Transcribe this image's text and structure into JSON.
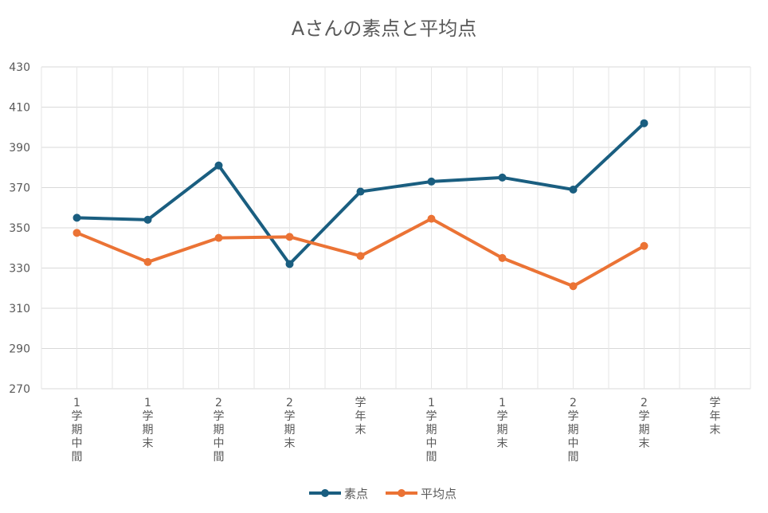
{
  "chart_data": {
    "type": "line",
    "title": "Aさんの素点と平均点",
    "xlabel": "",
    "ylabel": "",
    "categories": [
      "1\n学\n期\n中\n間",
      "1\n学\n期\n末",
      "2\n学\n期\n中\n間",
      "2\n学\n期\n末",
      "学\n年\n末",
      "1\n学\n期\n中\n間",
      "1\n学\n期\n末",
      "2\n学\n期\n中\n間",
      "2\n学\n期\n末",
      "学\n年\n末"
    ],
    "ylim": [
      270,
      430
    ],
    "yticks": [
      270,
      290,
      310,
      330,
      350,
      370,
      390,
      410,
      430
    ],
    "grid": true,
    "legend": "bottom",
    "series": [
      {
        "name": "素点",
        "color": "#1a5e80",
        "values": [
          355,
          354,
          381,
          332,
          368,
          373,
          375,
          369,
          402,
          null
        ]
      },
      {
        "name": "平均点",
        "color": "#eb7335",
        "values": [
          347.5,
          333,
          345,
          345.5,
          336,
          354.5,
          335,
          321,
          341,
          null
        ]
      }
    ]
  }
}
